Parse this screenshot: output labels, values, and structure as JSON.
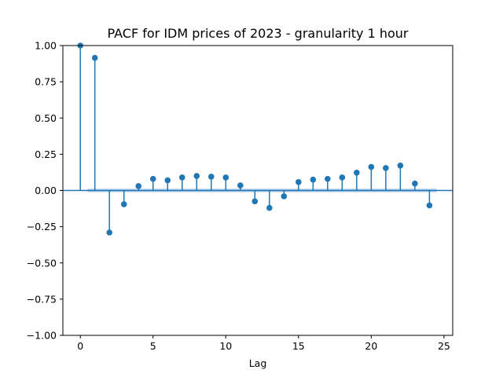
{
  "chart_data": {
    "type": "stem",
    "title": "PACF for IDM prices of 2023 - granularity 1 hour",
    "xlabel": "Lag",
    "ylabel": "",
    "xlim": [
      -1.2,
      25.6
    ],
    "ylim": [
      -1.0,
      1.0
    ],
    "xticks": [
      0,
      5,
      10,
      15,
      20,
      25
    ],
    "xtick_labels": [
      "0",
      "5",
      "10",
      "15",
      "20",
      "25"
    ],
    "yticks": [
      -1.0,
      -0.75,
      -0.5,
      -0.25,
      0.0,
      0.25,
      0.5,
      0.75,
      1.0
    ],
    "ytick_labels": [
      "−1.00",
      "−0.75",
      "−0.50",
      "−0.25",
      "0.00",
      "0.25",
      "0.50",
      "0.75",
      "1.00"
    ],
    "grid": false,
    "color": "#1f77b4",
    "confidence_color": "#aec7e8",
    "confidence_band": [
      -0.012,
      0.012
    ],
    "lags": [
      0,
      1,
      2,
      3,
      4,
      5,
      6,
      7,
      8,
      9,
      10,
      11,
      12,
      13,
      14,
      15,
      16,
      17,
      18,
      19,
      20,
      21,
      22,
      23,
      24
    ],
    "values": [
      1.0,
      0.915,
      -0.29,
      -0.095,
      0.03,
      0.08,
      0.07,
      0.09,
      0.1,
      0.095,
      0.09,
      0.035,
      -0.075,
      -0.12,
      -0.04,
      0.058,
      0.075,
      0.08,
      0.09,
      0.123,
      0.162,
      0.155,
      0.172,
      0.048,
      -0.103
    ]
  }
}
